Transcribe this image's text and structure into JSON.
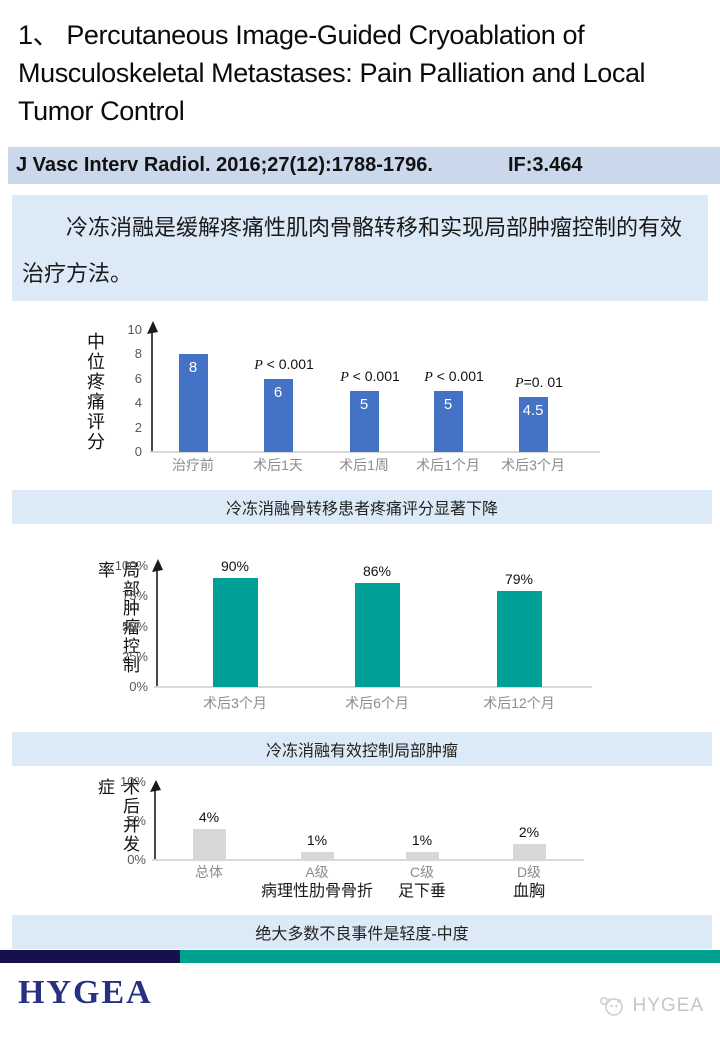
{
  "header": {
    "title": "1、 Percutaneous Image-Guided Cryoablation of Musculoskeletal Metastases: Pain Palliation and Local Tumor Control"
  },
  "journal": {
    "citation": "J Vasc Interv Radiol. 2016;27(12):1788-1796.",
    "impact_factor": "IF:3.464"
  },
  "summary": {
    "text": "冷冻消融是缓解疼痛性肌肉骨骼转移和实现局部肿瘤控制的有效治疗方法。"
  },
  "chart_data": [
    {
      "type": "bar",
      "ylabel": "中位疼痛评分",
      "categories": [
        "治疗前",
        "术后1天",
        "术后1周",
        "术后1个月",
        "术后3个月"
      ],
      "values": [
        8,
        6,
        5,
        5,
        4.5
      ],
      "bar_labels": [
        "8",
        "6",
        "5",
        "5",
        "4.5"
      ],
      "p_labels": [
        "",
        "P < 0.001",
        "P < 0.001",
        "P < 0.001",
        "P=0. 01"
      ],
      "yticks": [
        "0",
        "2",
        "4",
        "6",
        "8",
        "10"
      ],
      "ylim": [
        0,
        10
      ],
      "bar_color": "#4472C4",
      "caption": "冷冻消融骨转移患者疼痛评分显著下降"
    },
    {
      "type": "bar",
      "ylabel": "局部肿瘤控制率",
      "categories": [
        "术后3个月",
        "术后6个月",
        "术后12个月"
      ],
      "values": [
        90,
        86,
        79
      ],
      "bar_labels": [
        "90%",
        "86%",
        "79%"
      ],
      "yticks": [
        "0%",
        "25%",
        "50%",
        "75%",
        "100%"
      ],
      "ylim": [
        0,
        100
      ],
      "bar_color": "#00A099",
      "caption": "冷冻消融有效控制局部肿瘤"
    },
    {
      "type": "bar",
      "ylabel": "术后并发症",
      "categories": [
        "总体",
        "A级",
        "C级",
        "D级"
      ],
      "sub_labels": [
        "",
        "病理性肋骨骨折",
        "足下垂",
        "血胸"
      ],
      "values": [
        4,
        1,
        1,
        2
      ],
      "bar_labels": [
        "4%",
        "1%",
        "1%",
        "2%"
      ],
      "yticks": [
        "0%",
        "5%",
        "10%"
      ],
      "ylim": [
        0,
        10
      ],
      "bar_color": "#D8D8D8",
      "caption": "绝大多数不良事件是轻度-中度"
    }
  ],
  "footer": {
    "logo_text": "HYGEA",
    "watermark_text": "HYGEA"
  },
  "colors": {
    "bar_blue": "#4472C4",
    "bar_teal": "#00A099",
    "bar_gray": "#D8D8D8",
    "banner_bg": "#DCE9F6",
    "journal_bg": "#CBD7EA",
    "stripe_navy": "#15104E",
    "stripe_teal": "#00A08E",
    "logo_navy": "#283181",
    "axis_line": "#D9D9D9",
    "tick_text": "#595959",
    "category_text": "#8C8C8C"
  }
}
